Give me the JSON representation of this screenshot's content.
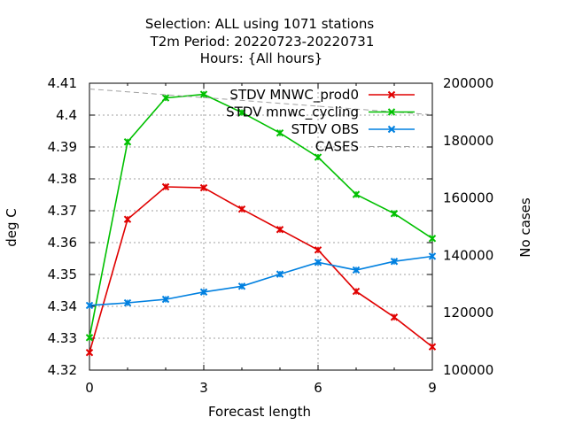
{
  "chart_data": {
    "type": "line",
    "title_lines": [
      "Selection: ALL using  1071 stations",
      "T2m   Period: 20220723-20220731",
      "Hours: {All hours}"
    ],
    "xlabel": "Forecast length",
    "ylabel": "deg C",
    "y2label": "No cases",
    "xlim": [
      0,
      9
    ],
    "ylim": [
      4.32,
      4.41
    ],
    "y2lim": [
      100000,
      200000
    ],
    "x_ticks": [
      "0",
      "3",
      "6",
      "9"
    ],
    "y_ticks": [
      "4.32",
      "4.33",
      "4.34",
      "4.35",
      "4.36",
      "4.37",
      "4.38",
      "4.39",
      "4.4",
      "4.41"
    ],
    "y2_ticks": [
      "100000",
      "120000",
      "140000",
      "160000",
      "180000",
      "200000"
    ],
    "grid": true,
    "legend_position": "top-right",
    "x": [
      0,
      1,
      2,
      3,
      4,
      5,
      6,
      7,
      8,
      9
    ],
    "series": [
      {
        "name": "STDV MNWC_prod0",
        "color": "#e00000",
        "axis": "y",
        "marker": "x",
        "values": [
          4.3255,
          4.3673,
          4.3775,
          4.3772,
          4.3705,
          4.3641,
          4.3577,
          4.3447,
          4.3366,
          4.3273
        ]
      },
      {
        "name": "STDV mnwc_cycling",
        "color": "#00c000",
        "axis": "y",
        "marker": "x",
        "values": [
          4.3302,
          4.3916,
          4.4054,
          4.4065,
          4.4008,
          4.3944,
          4.3868,
          4.3751,
          4.3691,
          4.3613
        ]
      },
      {
        "name": "STDV OBS",
        "color": "#0080e0",
        "axis": "y",
        "marker": "x",
        "values": [
          4.3403,
          4.3411,
          4.3422,
          4.3445,
          4.3463,
          4.3501,
          4.3538,
          4.3514,
          4.3541,
          4.3557
        ]
      },
      {
        "name": "CASES",
        "color": "#a0a0a0",
        "axis": "y2",
        "dashed": true,
        "values": [
          198000,
          197000,
          196000,
          195000,
          194000,
          193000,
          192000,
          191000,
          190000,
          189000
        ]
      }
    ]
  }
}
